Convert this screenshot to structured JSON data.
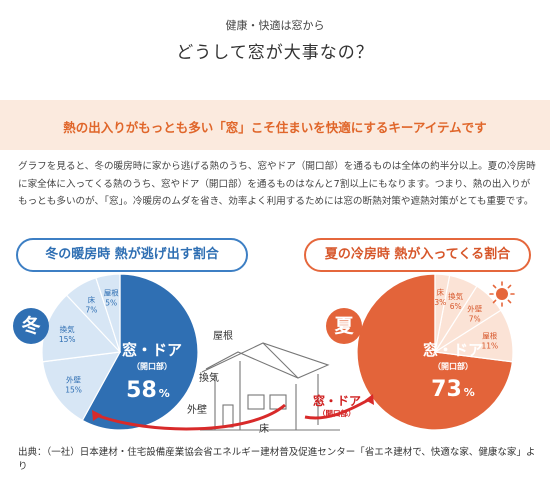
{
  "header": {
    "subtitle": "健康・快適は窓から",
    "title": "どうして窓が大事なの？"
  },
  "band": {
    "text": "熱の出入りがもっとも多い「窓」こそ住まいを快適にするキーアイテムです"
  },
  "body": {
    "text": "グラフを見ると、冬の暖房時に家から逃げる熱のうち、窓やドア（開口部）を通るものは全体の約半分以上。夏の冷房時に家全体に入ってくる熱のうち、窓やドア（開口部）を通るものはなんと7割以上にもなります。つまり、熱の出入りがもっとも多いのが、「窓」。冷暖房のムダを省き、効率よく利用するためには窓の断熱対策や遮熱対策がとても重要です。"
  },
  "winter": {
    "heading": "冬の暖房時 熱が逃げ出す割合",
    "badge": "冬",
    "main_label": "窓・ドア",
    "main_sub": "（開口部）",
    "main_value": "58",
    "percent_sign": "%",
    "color_main": "#2f6fb3",
    "color_light": "#d7e6f5"
  },
  "summer": {
    "heading": "夏の冷房時 熱が入ってくる割合",
    "badge": "夏",
    "main_label": "窓・ドア",
    "main_sub": "（開口部）",
    "main_value": "73",
    "percent_sign": "%",
    "color_main": "#e3643a",
    "color_light": "#fbe3d6"
  },
  "house": {
    "roof": "屋根",
    "ventilation": "換気",
    "wall": "外壁",
    "floor": "床",
    "window_door": "窓・ドア",
    "window_door_sub": "（開口部）"
  },
  "chart_data": [
    {
      "type": "pie",
      "title": "冬の暖房時 熱が逃げ出す割合",
      "categories": [
        "窓・ドア（開口部）",
        "外壁",
        "換気",
        "床",
        "屋根"
      ],
      "values": [
        58,
        15,
        15,
        7,
        5
      ]
    },
    {
      "type": "pie",
      "title": "夏の冷房時 熱が入ってくる割合",
      "categories": [
        "窓・ドア（開口部）",
        "屋根",
        "外壁",
        "換気",
        "床"
      ],
      "values": [
        73,
        11,
        7,
        6,
        3
      ]
    }
  ],
  "source": {
    "text": "出典：（一社）日本建材・住宅設備産業協会省エネルギー建材普及促進センター「省エネ建材で、快適な家、健康な家」より"
  }
}
